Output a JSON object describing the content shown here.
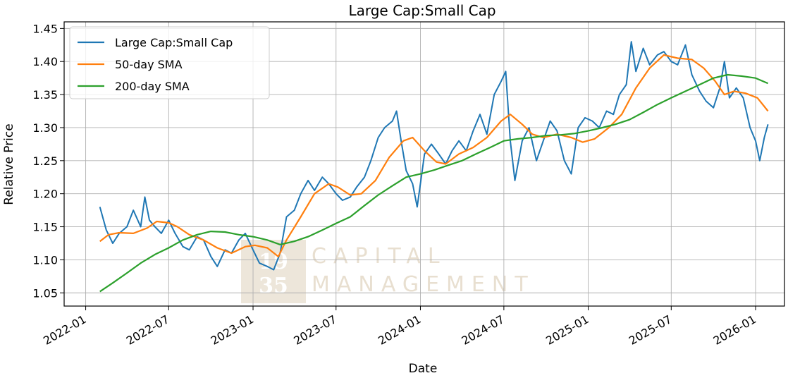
{
  "chart_data": {
    "type": "line",
    "title": "Large Cap:Small Cap",
    "xlabel": "Date",
    "ylabel": "Relative Price",
    "x_ticks": [
      "2022-01",
      "2022-07",
      "2023-01",
      "2023-07",
      "2024-01",
      "2024-07",
      "2025-01",
      "2025-07",
      "2026-01"
    ],
    "y_ticks": [
      "1.05",
      "1.10",
      "1.15",
      "1.20",
      "1.25",
      "1.30",
      "1.35",
      "1.40",
      "1.45"
    ],
    "xlim": [
      "2021-11-15",
      "2026-03-05"
    ],
    "ylim": [
      1.03,
      1.46
    ],
    "grid": true,
    "legend_position": "top-left",
    "series": [
      {
        "name": "Large Cap:Small Cap",
        "color": "#1f77b4",
        "points": [
          [
            "2022-02-01",
            1.18
          ],
          [
            "2022-02-15",
            1.145
          ],
          [
            "2022-03-01",
            1.125
          ],
          [
            "2022-03-15",
            1.14
          ],
          [
            "2022-04-01",
            1.15
          ],
          [
            "2022-04-15",
            1.175
          ],
          [
            "2022-05-01",
            1.15
          ],
          [
            "2022-05-10",
            1.195
          ],
          [
            "2022-05-20",
            1.16
          ],
          [
            "2022-06-01",
            1.15
          ],
          [
            "2022-06-15",
            1.14
          ],
          [
            "2022-07-01",
            1.16
          ],
          [
            "2022-07-15",
            1.14
          ],
          [
            "2022-08-01",
            1.12
          ],
          [
            "2022-08-15",
            1.115
          ],
          [
            "2022-09-01",
            1.135
          ],
          [
            "2022-09-15",
            1.13
          ],
          [
            "2022-10-01",
            1.105
          ],
          [
            "2022-10-15",
            1.09
          ],
          [
            "2022-11-01",
            1.115
          ],
          [
            "2022-11-15",
            1.11
          ],
          [
            "2022-12-01",
            1.13
          ],
          [
            "2022-12-15",
            1.14
          ],
          [
            "2023-01-01",
            1.115
          ],
          [
            "2023-01-15",
            1.095
          ],
          [
            "2023-02-01",
            1.09
          ],
          [
            "2023-02-15",
            1.085
          ],
          [
            "2023-03-01",
            1.11
          ],
          [
            "2023-03-15",
            1.165
          ],
          [
            "2023-04-01",
            1.175
          ],
          [
            "2023-04-15",
            1.2
          ],
          [
            "2023-05-01",
            1.22
          ],
          [
            "2023-05-15",
            1.205
          ],
          [
            "2023-06-01",
            1.225
          ],
          [
            "2023-06-15",
            1.215
          ],
          [
            "2023-07-01",
            1.2
          ],
          [
            "2023-07-15",
            1.19
          ],
          [
            "2023-08-01",
            1.195
          ],
          [
            "2023-08-15",
            1.21
          ],
          [
            "2023-09-01",
            1.225
          ],
          [
            "2023-09-15",
            1.25
          ],
          [
            "2023-10-01",
            1.285
          ],
          [
            "2023-10-15",
            1.3
          ],
          [
            "2023-11-01",
            1.31
          ],
          [
            "2023-11-10",
            1.325
          ],
          [
            "2023-11-20",
            1.28
          ],
          [
            "2023-12-01",
            1.235
          ],
          [
            "2023-12-15",
            1.215
          ],
          [
            "2023-12-25",
            1.18
          ],
          [
            "2024-01-10",
            1.26
          ],
          [
            "2024-01-25",
            1.275
          ],
          [
            "2024-02-10",
            1.26
          ],
          [
            "2024-02-25",
            1.245
          ],
          [
            "2024-03-10",
            1.265
          ],
          [
            "2024-03-25",
            1.28
          ],
          [
            "2024-04-10",
            1.265
          ],
          [
            "2024-04-25",
            1.295
          ],
          [
            "2024-05-10",
            1.32
          ],
          [
            "2024-05-25",
            1.29
          ],
          [
            "2024-06-10",
            1.35
          ],
          [
            "2024-06-25",
            1.37
          ],
          [
            "2024-07-05",
            1.385
          ],
          [
            "2024-07-15",
            1.28
          ],
          [
            "2024-07-25",
            1.22
          ],
          [
            "2024-08-10",
            1.28
          ],
          [
            "2024-08-25",
            1.3
          ],
          [
            "2024-09-10",
            1.25
          ],
          [
            "2024-09-25",
            1.28
          ],
          [
            "2024-10-10",
            1.31
          ],
          [
            "2024-10-25",
            1.295
          ],
          [
            "2024-11-10",
            1.25
          ],
          [
            "2024-11-25",
            1.23
          ],
          [
            "2024-12-10",
            1.3
          ],
          [
            "2024-12-25",
            1.315
          ],
          [
            "2025-01-10",
            1.31
          ],
          [
            "2025-01-25",
            1.3
          ],
          [
            "2025-02-10",
            1.325
          ],
          [
            "2025-02-25",
            1.32
          ],
          [
            "2025-03-10",
            1.35
          ],
          [
            "2025-03-25",
            1.365
          ],
          [
            "2025-04-05",
            1.43
          ],
          [
            "2025-04-15",
            1.385
          ],
          [
            "2025-05-01",
            1.42
          ],
          [
            "2025-05-15",
            1.395
          ],
          [
            "2025-06-01",
            1.41
          ],
          [
            "2025-06-15",
            1.415
          ],
          [
            "2025-07-01",
            1.4
          ],
          [
            "2025-07-15",
            1.395
          ],
          [
            "2025-08-01",
            1.425
          ],
          [
            "2025-08-15",
            1.38
          ],
          [
            "2025-09-01",
            1.355
          ],
          [
            "2025-09-15",
            1.34
          ],
          [
            "2025-10-01",
            1.33
          ],
          [
            "2025-10-15",
            1.36
          ],
          [
            "2025-10-25",
            1.4
          ],
          [
            "2025-11-05",
            1.345
          ],
          [
            "2025-11-20",
            1.36
          ],
          [
            "2025-12-05",
            1.345
          ],
          [
            "2025-12-20",
            1.3
          ],
          [
            "2026-01-01",
            1.28
          ],
          [
            "2026-01-10",
            1.25
          ],
          [
            "2026-01-20",
            1.285
          ],
          [
            "2026-01-28",
            1.305
          ]
        ]
      },
      {
        "name": "50-day SMA",
        "color": "#ff7f0e",
        "points": [
          [
            "2022-02-01",
            1.128
          ],
          [
            "2022-02-20",
            1.138
          ],
          [
            "2022-03-15",
            1.141
          ],
          [
            "2022-04-15",
            1.14
          ],
          [
            "2022-05-15",
            1.148
          ],
          [
            "2022-06-05",
            1.158
          ],
          [
            "2022-07-01",
            1.156
          ],
          [
            "2022-07-20",
            1.15
          ],
          [
            "2022-08-15",
            1.138
          ],
          [
            "2022-09-15",
            1.13
          ],
          [
            "2022-10-15",
            1.118
          ],
          [
            "2022-11-15",
            1.11
          ],
          [
            "2022-12-15",
            1.12
          ],
          [
            "2023-01-05",
            1.122
          ],
          [
            "2023-02-01",
            1.118
          ],
          [
            "2023-02-25",
            1.105
          ],
          [
            "2023-03-15",
            1.13
          ],
          [
            "2023-04-15",
            1.165
          ],
          [
            "2023-05-15",
            1.2
          ],
          [
            "2023-06-15",
            1.215
          ],
          [
            "2023-07-05",
            1.21
          ],
          [
            "2023-08-01",
            1.198
          ],
          [
            "2023-08-25",
            1.2
          ],
          [
            "2023-09-25",
            1.22
          ],
          [
            "2023-10-25",
            1.255
          ],
          [
            "2023-11-25",
            1.28
          ],
          [
            "2023-12-15",
            1.285
          ],
          [
            "2024-01-10",
            1.265
          ],
          [
            "2024-02-05",
            1.248
          ],
          [
            "2024-02-25",
            1.245
          ],
          [
            "2024-03-25",
            1.26
          ],
          [
            "2024-04-25",
            1.27
          ],
          [
            "2024-05-25",
            1.285
          ],
          [
            "2024-06-25",
            1.31
          ],
          [
            "2024-07-15",
            1.32
          ],
          [
            "2024-08-10",
            1.305
          ],
          [
            "2024-09-01",
            1.29
          ],
          [
            "2024-09-25",
            1.285
          ],
          [
            "2024-10-25",
            1.29
          ],
          [
            "2024-11-25",
            1.285
          ],
          [
            "2024-12-20",
            1.278
          ],
          [
            "2025-01-15",
            1.283
          ],
          [
            "2025-02-15",
            1.3
          ],
          [
            "2025-03-15",
            1.32
          ],
          [
            "2025-04-15",
            1.36
          ],
          [
            "2025-05-15",
            1.39
          ],
          [
            "2025-06-15",
            1.41
          ],
          [
            "2025-07-15",
            1.405
          ],
          [
            "2025-08-15",
            1.403
          ],
          [
            "2025-09-10",
            1.39
          ],
          [
            "2025-10-05",
            1.37
          ],
          [
            "2025-10-25",
            1.35
          ],
          [
            "2025-11-15",
            1.355
          ],
          [
            "2025-12-10",
            1.352
          ],
          [
            "2026-01-05",
            1.345
          ],
          [
            "2026-01-28",
            1.325
          ]
        ]
      },
      {
        "name": "200-day SMA",
        "color": "#2ca02c",
        "points": [
          [
            "2022-02-01",
            1.052
          ],
          [
            "2022-03-01",
            1.065
          ],
          [
            "2022-04-01",
            1.08
          ],
          [
            "2022-05-01",
            1.095
          ],
          [
            "2022-06-01",
            1.108
          ],
          [
            "2022-07-01",
            1.118
          ],
          [
            "2022-08-01",
            1.13
          ],
          [
            "2022-09-01",
            1.138
          ],
          [
            "2022-10-01",
            1.143
          ],
          [
            "2022-11-01",
            1.142
          ],
          [
            "2022-12-01",
            1.138
          ],
          [
            "2023-01-01",
            1.135
          ],
          [
            "2023-02-01",
            1.13
          ],
          [
            "2023-03-01",
            1.123
          ],
          [
            "2023-04-01",
            1.128
          ],
          [
            "2023-05-01",
            1.135
          ],
          [
            "2023-06-01",
            1.145
          ],
          [
            "2023-07-01",
            1.155
          ],
          [
            "2023-08-01",
            1.165
          ],
          [
            "2023-09-01",
            1.182
          ],
          [
            "2023-10-01",
            1.198
          ],
          [
            "2023-11-01",
            1.212
          ],
          [
            "2023-12-01",
            1.225
          ],
          [
            "2024-01-01",
            1.23
          ],
          [
            "2024-02-01",
            1.236
          ],
          [
            "2024-03-01",
            1.243
          ],
          [
            "2024-04-01",
            1.25
          ],
          [
            "2024-05-01",
            1.26
          ],
          [
            "2024-06-01",
            1.27
          ],
          [
            "2024-07-01",
            1.28
          ],
          [
            "2024-08-01",
            1.283
          ],
          [
            "2024-09-01",
            1.285
          ],
          [
            "2024-10-01",
            1.288
          ],
          [
            "2024-11-01",
            1.289
          ],
          [
            "2024-12-01",
            1.291
          ],
          [
            "2025-01-01",
            1.295
          ],
          [
            "2025-02-01",
            1.3
          ],
          [
            "2025-03-01",
            1.305
          ],
          [
            "2025-04-01",
            1.312
          ],
          [
            "2025-05-01",
            1.323
          ],
          [
            "2025-06-01",
            1.335
          ],
          [
            "2025-07-01",
            1.345
          ],
          [
            "2025-08-01",
            1.355
          ],
          [
            "2025-09-01",
            1.365
          ],
          [
            "2025-10-01",
            1.375
          ],
          [
            "2025-11-01",
            1.38
          ],
          [
            "2025-12-01",
            1.378
          ],
          [
            "2026-01-01",
            1.375
          ],
          [
            "2026-01-28",
            1.367
          ]
        ]
      }
    ],
    "watermark": {
      "numerals_top": "19",
      "numerals_bottom": "35",
      "line1": "CAPITAL",
      "line2": "MANAGEMENT"
    }
  }
}
